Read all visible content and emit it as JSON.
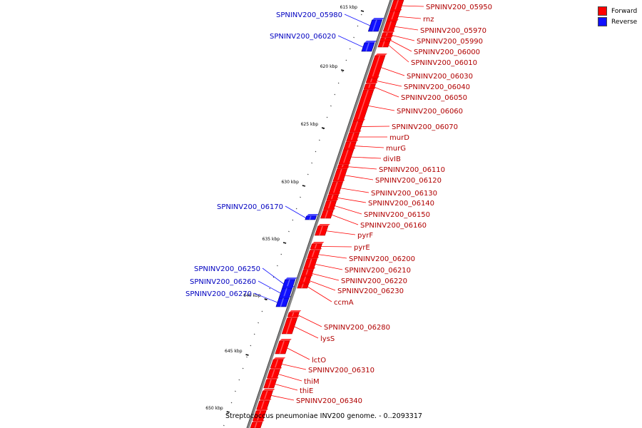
{
  "legend": [
    {
      "label": "Forward",
      "color": "#ff0000"
    },
    {
      "label": "Reverse",
      "color": "#1010ff"
    }
  ],
  "caption": "Streptococcus pneumoniae INV200 genome. - 0..2093317",
  "colors": {
    "forward": "#ff0000",
    "reverse": "#1010ff",
    "backbone": "#888888"
  },
  "ticks": [
    "615 kbp",
    "620 kbp",
    "625 kbp",
    "630 kbp",
    "635 kbp",
    "640 kbp",
    "645 kbp",
    "650 kbp"
  ],
  "genes": [
    {
      "name": "SPNINV200_05950",
      "strand": "forward"
    },
    {
      "name": "rnz",
      "strand": "forward"
    },
    {
      "name": "SPNINV200_05970",
      "strand": "forward"
    },
    {
      "name": "SPNINV200_05990",
      "strand": "forward"
    },
    {
      "name": "SPNINV200_06000",
      "strand": "forward"
    },
    {
      "name": "SPNINV200_06010",
      "strand": "forward"
    },
    {
      "name": "SPNINV200_06030",
      "strand": "forward"
    },
    {
      "name": "SPNINV200_06040",
      "strand": "forward"
    },
    {
      "name": "SPNINV200_06050",
      "strand": "forward"
    },
    {
      "name": "SPNINV200_06060",
      "strand": "forward"
    },
    {
      "name": "SPNINV200_06070",
      "strand": "forward"
    },
    {
      "name": "murD",
      "strand": "forward"
    },
    {
      "name": "murG",
      "strand": "forward"
    },
    {
      "name": "divIB",
      "strand": "forward"
    },
    {
      "name": "SPNINV200_06110",
      "strand": "forward"
    },
    {
      "name": "SPNINV200_06120",
      "strand": "forward"
    },
    {
      "name": "SPNINV200_06130",
      "strand": "forward"
    },
    {
      "name": "SPNINV200_06140",
      "strand": "forward"
    },
    {
      "name": "SPNINV200_06150",
      "strand": "forward"
    },
    {
      "name": "SPNINV200_06160",
      "strand": "forward"
    },
    {
      "name": "pyrF",
      "strand": "forward"
    },
    {
      "name": "pyrE",
      "strand": "forward"
    },
    {
      "name": "SPNINV200_06200",
      "strand": "forward"
    },
    {
      "name": "SPNINV200_06210",
      "strand": "forward"
    },
    {
      "name": "SPNINV200_06220",
      "strand": "forward"
    },
    {
      "name": "SPNINV200_06230",
      "strand": "forward"
    },
    {
      "name": "ccmA",
      "strand": "forward"
    },
    {
      "name": "SPNINV200_06280",
      "strand": "forward"
    },
    {
      "name": "lysS",
      "strand": "forward"
    },
    {
      "name": "lctO",
      "strand": "forward"
    },
    {
      "name": "SPNINV200_06310",
      "strand": "forward"
    },
    {
      "name": "thiM",
      "strand": "forward"
    },
    {
      "name": "thiE",
      "strand": "forward"
    },
    {
      "name": "SPNINV200_06340",
      "strand": "forward"
    },
    {
      "name": "SPNINV200_05980",
      "strand": "reverse"
    },
    {
      "name": "SPNINV200_06020",
      "strand": "reverse"
    },
    {
      "name": "SPNINV200_06170",
      "strand": "reverse"
    },
    {
      "name": "SPNINV200_06250",
      "strand": "reverse"
    },
    {
      "name": "SPNINV200_06260",
      "strand": "reverse"
    },
    {
      "name": "SPNINV200_06270",
      "strand": "reverse"
    }
  ]
}
